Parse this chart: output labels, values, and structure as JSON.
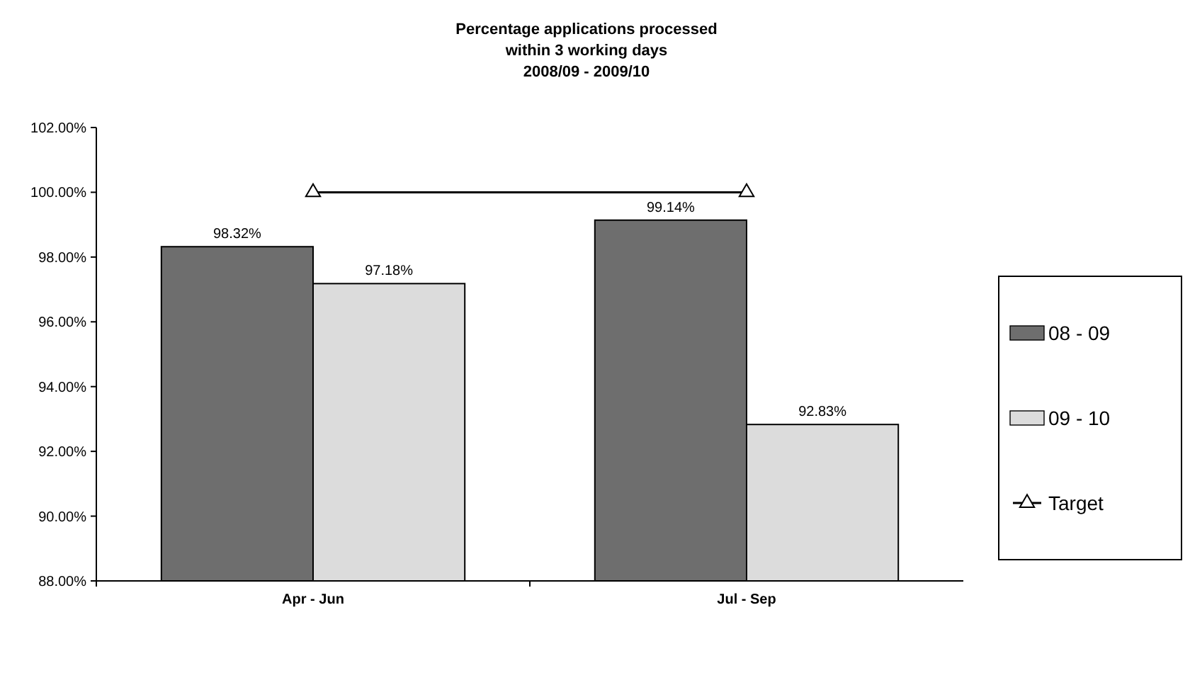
{
  "chart_data": {
    "type": "bar",
    "title": "Percentage applications processed\nwithin 3 working days\n2008/09 - 2009/10",
    "categories": [
      "Apr - Jun",
      "Jul - Sep"
    ],
    "series": [
      {
        "name": "08 - 09",
        "color": "#6e6e6e",
        "values": [
          98.32,
          99.14
        ],
        "value_labels": [
          "98.32%",
          "99.14%"
        ]
      },
      {
        "name": "09 - 10",
        "color": "#dcdcdc",
        "values": [
          97.18,
          92.83
        ],
        "value_labels": [
          "97.18%",
          "92.83%"
        ]
      },
      {
        "name": "Target",
        "type": "line",
        "color": "#000000",
        "values": [
          100,
          100
        ],
        "marker": "triangle"
      }
    ],
    "ylim": [
      88,
      102
    ],
    "yticks": [
      {
        "value": 88,
        "label": "88.00%"
      },
      {
        "value": 90,
        "label": "90.00%"
      },
      {
        "value": 92,
        "label": "92.00%"
      },
      {
        "value": 94,
        "label": "94.00%"
      },
      {
        "value": 96,
        "label": "96.00%"
      },
      {
        "value": 98,
        "label": "98.00%"
      },
      {
        "value": 100,
        "label": "100.00%"
      },
      {
        "value": 102,
        "label": "102.00%"
      }
    ],
    "legend": "right",
    "grid": false
  }
}
